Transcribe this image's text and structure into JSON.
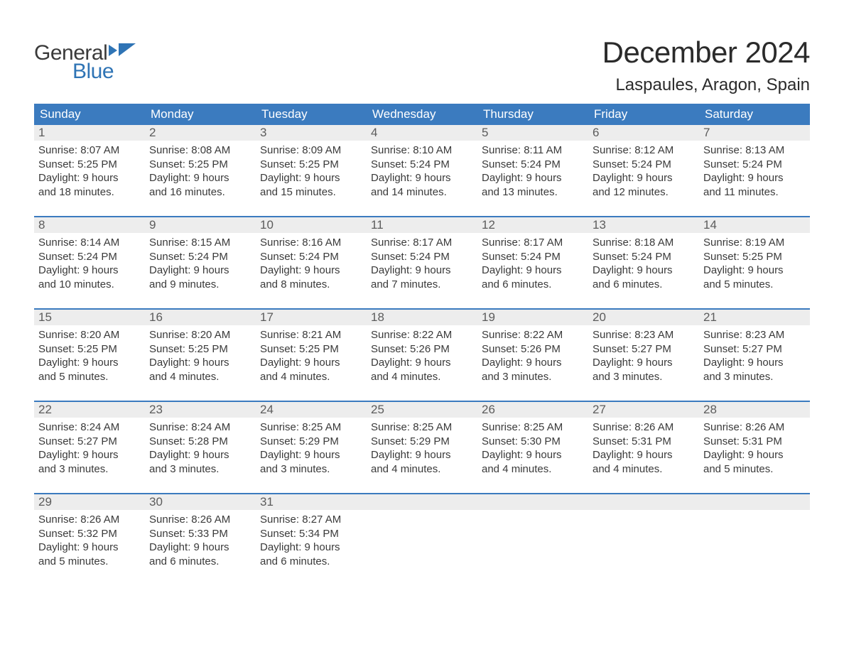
{
  "logo": {
    "word1": "General",
    "word2": "Blue",
    "text_color": "#3a3a3a",
    "accent_color": "#2f74b5"
  },
  "title": "December 2024",
  "location": "Laspaules, Aragon, Spain",
  "colors": {
    "header_bg": "#3b7bbf",
    "header_text": "#ffffff",
    "daynum_bg": "#ededed",
    "daynum_text": "#5c5c5c",
    "body_text": "#3a3a3a",
    "week_border": "#3b7bbf",
    "page_bg": "#ffffff"
  },
  "typography": {
    "title_fontsize": 42,
    "location_fontsize": 24,
    "header_fontsize": 17,
    "daynum_fontsize": 17,
    "body_fontsize": 15,
    "font_family": "Arial"
  },
  "day_headers": [
    "Sunday",
    "Monday",
    "Tuesday",
    "Wednesday",
    "Thursday",
    "Friday",
    "Saturday"
  ],
  "weeks": [
    [
      {
        "n": "1",
        "sunrise": "Sunrise: 8:07 AM",
        "sunset": "Sunset: 5:25 PM",
        "d1": "Daylight: 9 hours",
        "d2": "and 18 minutes."
      },
      {
        "n": "2",
        "sunrise": "Sunrise: 8:08 AM",
        "sunset": "Sunset: 5:25 PM",
        "d1": "Daylight: 9 hours",
        "d2": "and 16 minutes."
      },
      {
        "n": "3",
        "sunrise": "Sunrise: 8:09 AM",
        "sunset": "Sunset: 5:25 PM",
        "d1": "Daylight: 9 hours",
        "d2": "and 15 minutes."
      },
      {
        "n": "4",
        "sunrise": "Sunrise: 8:10 AM",
        "sunset": "Sunset: 5:24 PM",
        "d1": "Daylight: 9 hours",
        "d2": "and 14 minutes."
      },
      {
        "n": "5",
        "sunrise": "Sunrise: 8:11 AM",
        "sunset": "Sunset: 5:24 PM",
        "d1": "Daylight: 9 hours",
        "d2": "and 13 minutes."
      },
      {
        "n": "6",
        "sunrise": "Sunrise: 8:12 AM",
        "sunset": "Sunset: 5:24 PM",
        "d1": "Daylight: 9 hours",
        "d2": "and 12 minutes."
      },
      {
        "n": "7",
        "sunrise": "Sunrise: 8:13 AM",
        "sunset": "Sunset: 5:24 PM",
        "d1": "Daylight: 9 hours",
        "d2": "and 11 minutes."
      }
    ],
    [
      {
        "n": "8",
        "sunrise": "Sunrise: 8:14 AM",
        "sunset": "Sunset: 5:24 PM",
        "d1": "Daylight: 9 hours",
        "d2": "and 10 minutes."
      },
      {
        "n": "9",
        "sunrise": "Sunrise: 8:15 AM",
        "sunset": "Sunset: 5:24 PM",
        "d1": "Daylight: 9 hours",
        "d2": "and 9 minutes."
      },
      {
        "n": "10",
        "sunrise": "Sunrise: 8:16 AM",
        "sunset": "Sunset: 5:24 PM",
        "d1": "Daylight: 9 hours",
        "d2": "and 8 minutes."
      },
      {
        "n": "11",
        "sunrise": "Sunrise: 8:17 AM",
        "sunset": "Sunset: 5:24 PM",
        "d1": "Daylight: 9 hours",
        "d2": "and 7 minutes."
      },
      {
        "n": "12",
        "sunrise": "Sunrise: 8:17 AM",
        "sunset": "Sunset: 5:24 PM",
        "d1": "Daylight: 9 hours",
        "d2": "and 6 minutes."
      },
      {
        "n": "13",
        "sunrise": "Sunrise: 8:18 AM",
        "sunset": "Sunset: 5:24 PM",
        "d1": "Daylight: 9 hours",
        "d2": "and 6 minutes."
      },
      {
        "n": "14",
        "sunrise": "Sunrise: 8:19 AM",
        "sunset": "Sunset: 5:25 PM",
        "d1": "Daylight: 9 hours",
        "d2": "and 5 minutes."
      }
    ],
    [
      {
        "n": "15",
        "sunrise": "Sunrise: 8:20 AM",
        "sunset": "Sunset: 5:25 PM",
        "d1": "Daylight: 9 hours",
        "d2": "and 5 minutes."
      },
      {
        "n": "16",
        "sunrise": "Sunrise: 8:20 AM",
        "sunset": "Sunset: 5:25 PM",
        "d1": "Daylight: 9 hours",
        "d2": "and 4 minutes."
      },
      {
        "n": "17",
        "sunrise": "Sunrise: 8:21 AM",
        "sunset": "Sunset: 5:25 PM",
        "d1": "Daylight: 9 hours",
        "d2": "and 4 minutes."
      },
      {
        "n": "18",
        "sunrise": "Sunrise: 8:22 AM",
        "sunset": "Sunset: 5:26 PM",
        "d1": "Daylight: 9 hours",
        "d2": "and 4 minutes."
      },
      {
        "n": "19",
        "sunrise": "Sunrise: 8:22 AM",
        "sunset": "Sunset: 5:26 PM",
        "d1": "Daylight: 9 hours",
        "d2": "and 3 minutes."
      },
      {
        "n": "20",
        "sunrise": "Sunrise: 8:23 AM",
        "sunset": "Sunset: 5:27 PM",
        "d1": "Daylight: 9 hours",
        "d2": "and 3 minutes."
      },
      {
        "n": "21",
        "sunrise": "Sunrise: 8:23 AM",
        "sunset": "Sunset: 5:27 PM",
        "d1": "Daylight: 9 hours",
        "d2": "and 3 minutes."
      }
    ],
    [
      {
        "n": "22",
        "sunrise": "Sunrise: 8:24 AM",
        "sunset": "Sunset: 5:27 PM",
        "d1": "Daylight: 9 hours",
        "d2": "and 3 minutes."
      },
      {
        "n": "23",
        "sunrise": "Sunrise: 8:24 AM",
        "sunset": "Sunset: 5:28 PM",
        "d1": "Daylight: 9 hours",
        "d2": "and 3 minutes."
      },
      {
        "n": "24",
        "sunrise": "Sunrise: 8:25 AM",
        "sunset": "Sunset: 5:29 PM",
        "d1": "Daylight: 9 hours",
        "d2": "and 3 minutes."
      },
      {
        "n": "25",
        "sunrise": "Sunrise: 8:25 AM",
        "sunset": "Sunset: 5:29 PM",
        "d1": "Daylight: 9 hours",
        "d2": "and 4 minutes."
      },
      {
        "n": "26",
        "sunrise": "Sunrise: 8:25 AM",
        "sunset": "Sunset: 5:30 PM",
        "d1": "Daylight: 9 hours",
        "d2": "and 4 minutes."
      },
      {
        "n": "27",
        "sunrise": "Sunrise: 8:26 AM",
        "sunset": "Sunset: 5:31 PM",
        "d1": "Daylight: 9 hours",
        "d2": "and 4 minutes."
      },
      {
        "n": "28",
        "sunrise": "Sunrise: 8:26 AM",
        "sunset": "Sunset: 5:31 PM",
        "d1": "Daylight: 9 hours",
        "d2": "and 5 minutes."
      }
    ],
    [
      {
        "n": "29",
        "sunrise": "Sunrise: 8:26 AM",
        "sunset": "Sunset: 5:32 PM",
        "d1": "Daylight: 9 hours",
        "d2": "and 5 minutes."
      },
      {
        "n": "30",
        "sunrise": "Sunrise: 8:26 AM",
        "sunset": "Sunset: 5:33 PM",
        "d1": "Daylight: 9 hours",
        "d2": "and 6 minutes."
      },
      {
        "n": "31",
        "sunrise": "Sunrise: 8:27 AM",
        "sunset": "Sunset: 5:34 PM",
        "d1": "Daylight: 9 hours",
        "d2": "and 6 minutes."
      },
      {
        "empty": true
      },
      {
        "empty": true
      },
      {
        "empty": true
      },
      {
        "empty": true
      }
    ]
  ]
}
